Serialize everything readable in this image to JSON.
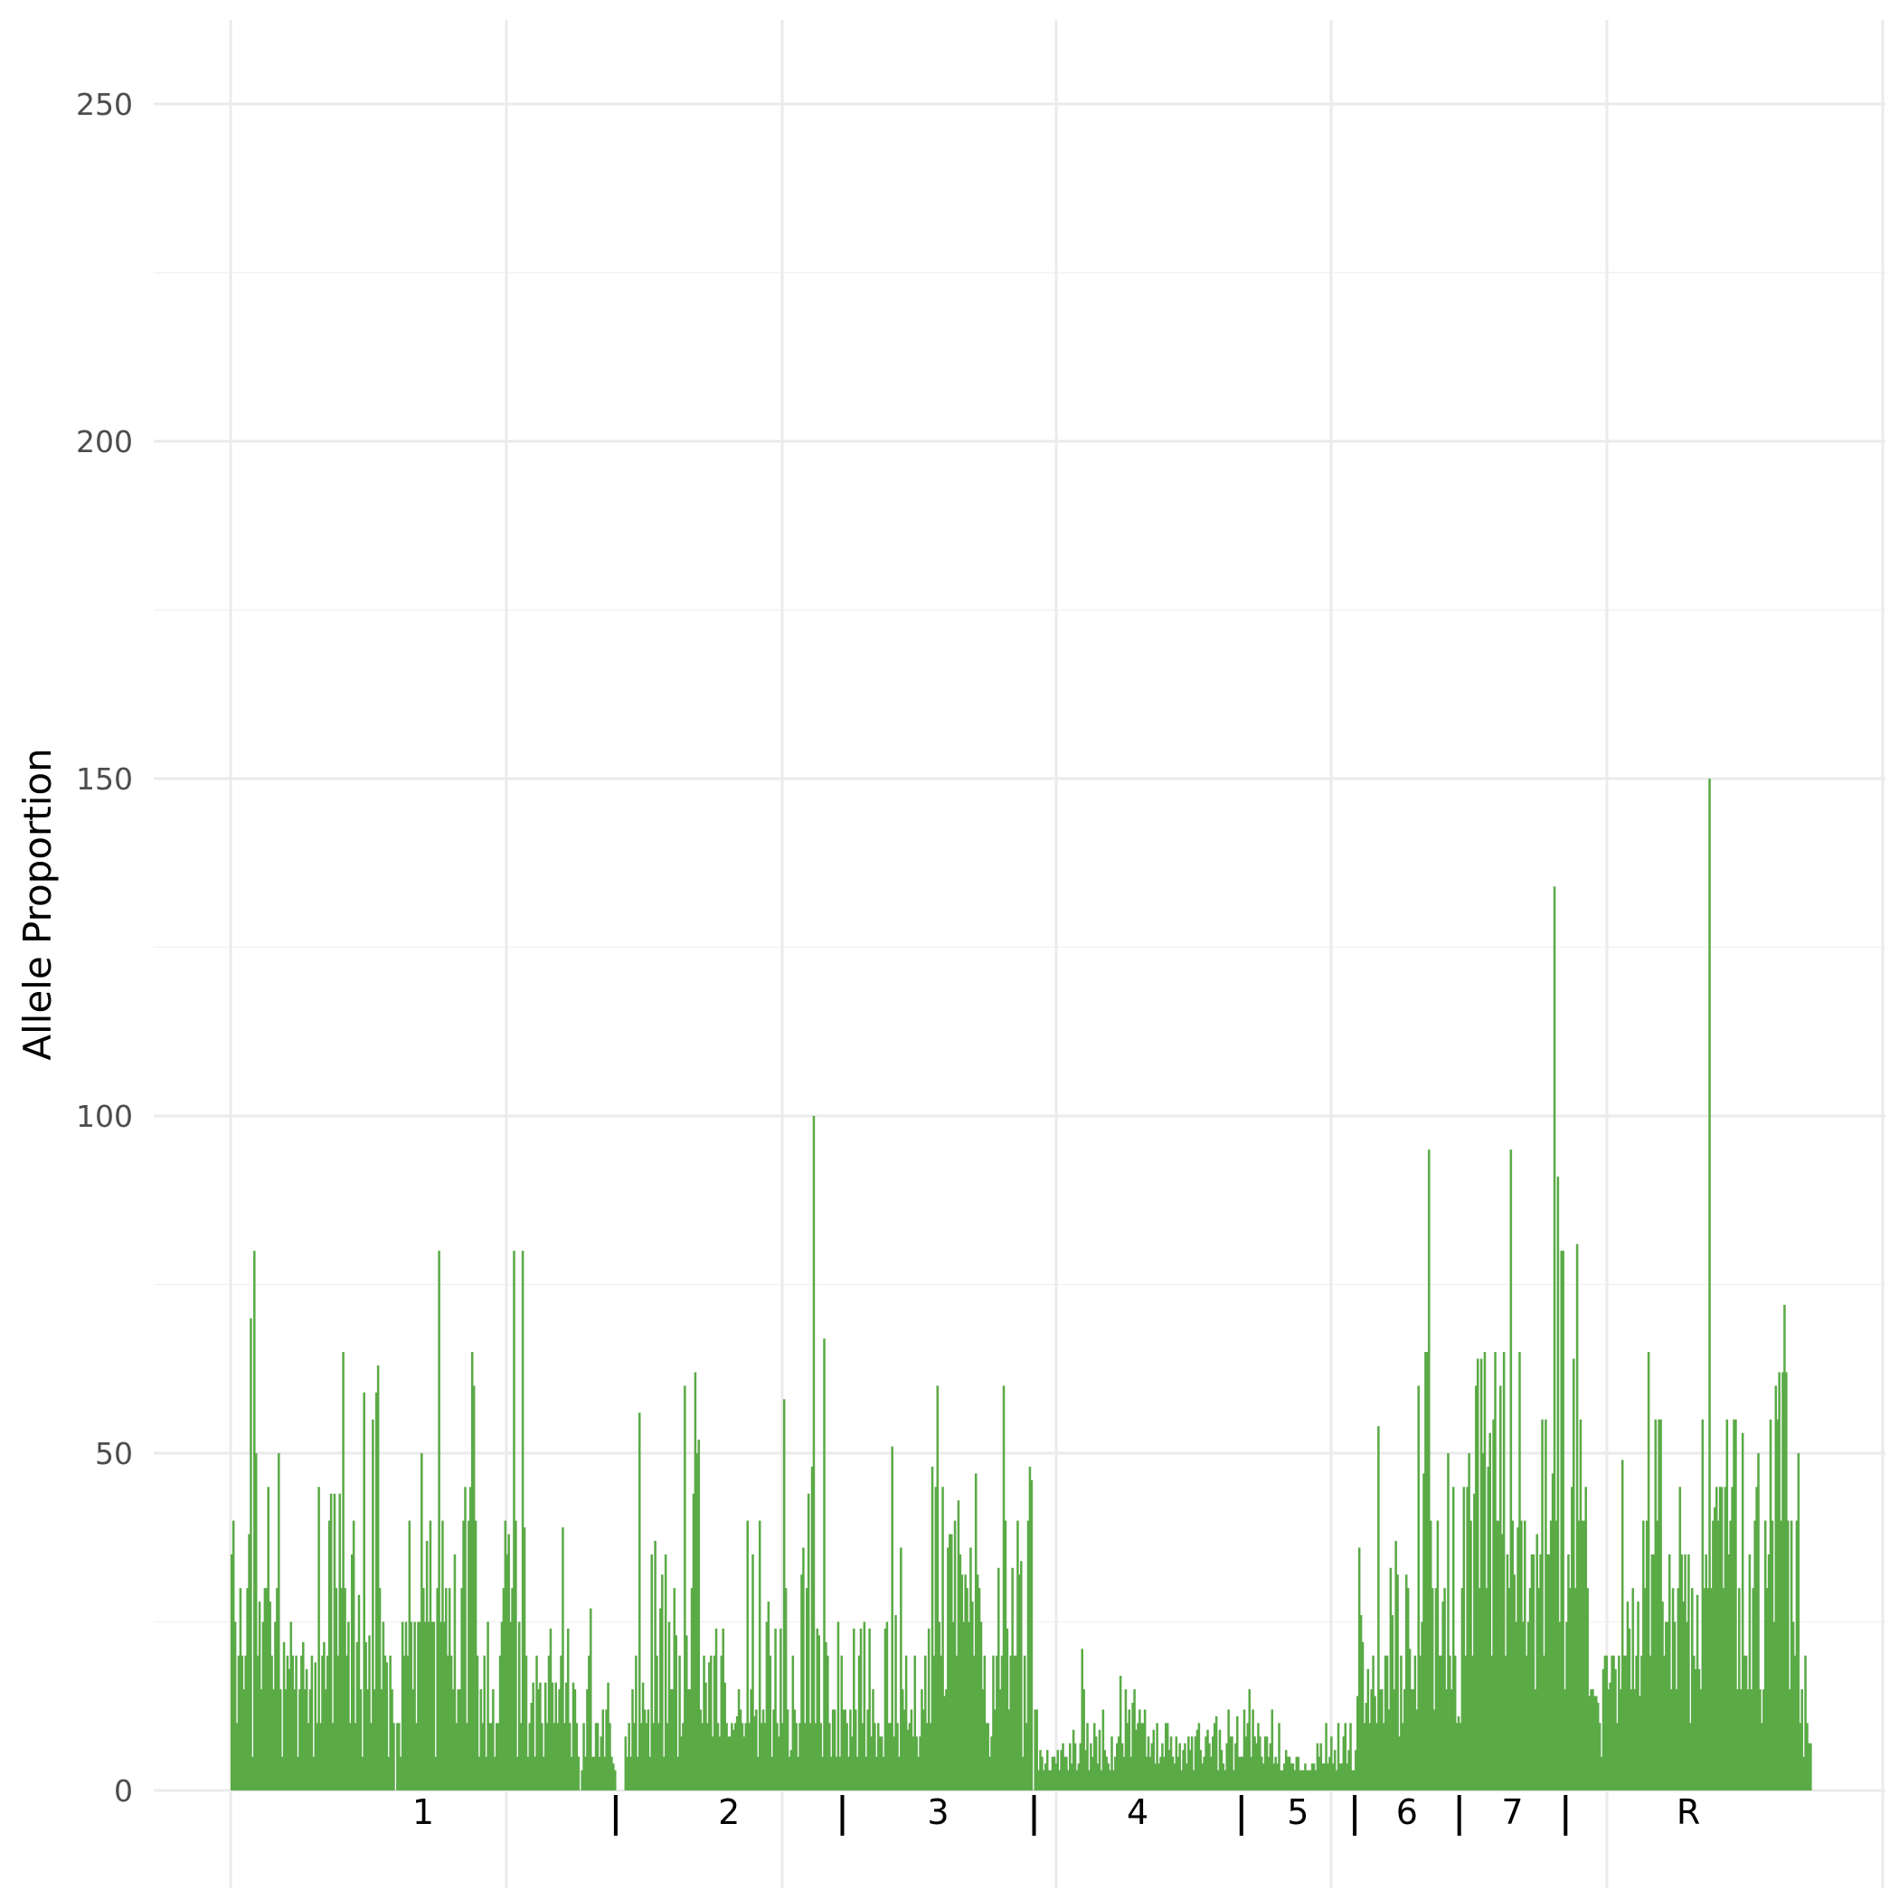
{
  "chart_data": {
    "type": "bar",
    "title": "",
    "xlabel": "",
    "ylabel": "Allele Proportion",
    "ylim": [
      0,
      260
    ],
    "yticks": [
      "0",
      "50",
      "100",
      "150",
      "200",
      "250"
    ],
    "bar_color": "#5aaa46",
    "grid": true,
    "legend": "none",
    "segments": [
      {
        "label": "1",
        "values": [
          35,
          40,
          25,
          10,
          20,
          30,
          20,
          15,
          20,
          30,
          38,
          70,
          5,
          80,
          50,
          20,
          28,
          15,
          25,
          30,
          30,
          45,
          28,
          20,
          15,
          25,
          30,
          50,
          15,
          5,
          22,
          15,
          20,
          18,
          25,
          20,
          15,
          20,
          5,
          15,
          20,
          22,
          15,
          18,
          10,
          15,
          20,
          5,
          19,
          10,
          45,
          10,
          20,
          22,
          15,
          20,
          40,
          44,
          10,
          44,
          30,
          20,
          44,
          30,
          65,
          30,
          20,
          25,
          10,
          35,
          40,
          10,
          22,
          29,
          15,
          5,
          59,
          22,
          15,
          23,
          10,
          55,
          15,
          59,
          63,
          30,
          15,
          25,
          20,
          19,
          5,
          20,
          15,
          10,
          0,
          10,
          10,
          5,
          25,
          20,
          25,
          20,
          40,
          25,
          15,
          25,
          10,
          25,
          25,
          50,
          30,
          25,
          37,
          25,
          40,
          25,
          25,
          5,
          30,
          80,
          25,
          40,
          25,
          30,
          20,
          30,
          20,
          15,
          35,
          10,
          15,
          15,
          30,
          40,
          45,
          10,
          40,
          45,
          65,
          60,
          40,
          20,
          5,
          15,
          10,
          20,
          5,
          25,
          10,
          10,
          15,
          5,
          10,
          10,
          20,
          25,
          30,
          40,
          35,
          38,
          25,
          30,
          80,
          40,
          5,
          25,
          10,
          80,
          39,
          20,
          5,
          10,
          13,
          16,
          5,
          20,
          15,
          16,
          10,
          5,
          16,
          10,
          20,
          24,
          16,
          10,
          16,
          10,
          15,
          20,
          39,
          10,
          16,
          24,
          10,
          5,
          16,
          15,
          10,
          5,
          0,
          3,
          10,
          5,
          15,
          20,
          27,
          5,
          5,
          10,
          10,
          5,
          8,
          12,
          5,
          12,
          16,
          10,
          5,
          4,
          3
        ]
      },
      {
        "label": "2",
        "values": [
          0,
          0,
          0,
          0,
          0,
          8,
          5,
          10,
          5,
          15,
          10,
          20,
          5,
          56,
          10,
          16,
          12,
          10,
          12,
          5,
          35,
          10,
          37,
          20,
          10,
          27,
          32,
          5,
          35,
          10,
          25,
          15,
          15,
          30,
          23,
          5,
          20,
          8,
          10,
          60,
          23,
          15,
          15,
          30,
          44,
          62,
          50,
          52,
          12,
          10,
          20,
          16,
          10,
          19,
          20,
          8,
          20,
          24,
          10,
          8,
          20,
          24,
          16,
          10,
          8,
          8,
          10,
          9,
          10,
          11,
          15,
          12,
          10,
          8,
          10,
          40,
          10,
          15,
          35,
          11,
          12,
          5,
          40,
          10,
          12,
          10,
          25,
          28,
          20,
          5,
          12,
          24,
          10,
          8,
          24,
          10,
          58,
          30,
          12,
          5,
          6,
          20,
          12,
          10,
          5,
          10,
          32,
          36,
          10,
          30,
          44,
          10,
          48,
          100,
          10,
          24,
          23,
          10,
          5,
          67,
          22,
          20,
          10,
          5,
          12,
          12,
          5,
          25,
          5,
          20
        ]
      },
      {
        "label": "3",
        "values": [
          12,
          12,
          10,
          5,
          12,
          8,
          24,
          12,
          5,
          20,
          24,
          10,
          25,
          5,
          12,
          24,
          8,
          15,
          10,
          5,
          10,
          8,
          8,
          5,
          24,
          25,
          10,
          10,
          51,
          8,
          26,
          10,
          5,
          36,
          15,
          12,
          20,
          9,
          10,
          12,
          8,
          20,
          8,
          5,
          8,
          15,
          12,
          20,
          10,
          24,
          10,
          48,
          20,
          45,
          60,
          25,
          20,
          45,
          14,
          15,
          36,
          38,
          38,
          25,
          40,
          20,
          43,
          35,
          32,
          25,
          32,
          30,
          25,
          36,
          28,
          20,
          47,
          32,
          30,
          25,
          15,
          20,
          10,
          10,
          5,
          8,
          20,
          12,
          20,
          33,
          15,
          20,
          60,
          40,
          24,
          12,
          20,
          33,
          20,
          20,
          40,
          32,
          34,
          5,
          20,
          10,
          40,
          48,
          46,
          0
        ]
      },
      {
        "label": "4",
        "values": [
          12,
          12,
          3,
          6,
          5,
          3,
          4,
          6,
          3,
          3,
          5,
          5,
          4,
          6,
          3,
          6,
          7,
          5,
          5,
          3,
          7,
          4,
          9,
          7,
          3,
          4,
          7,
          21,
          15,
          6,
          10,
          3,
          7,
          5,
          10,
          8,
          4,
          9,
          3,
          12,
          6,
          5,
          4,
          3,
          8,
          3,
          5,
          7,
          8,
          17,
          7,
          5,
          15,
          10,
          12,
          5,
          13,
          15,
          9,
          10,
          12,
          10,
          10,
          12,
          5,
          8,
          5,
          7,
          9,
          4,
          10,
          4,
          5,
          7,
          5,
          10,
          10,
          6,
          8,
          5,
          4,
          8,
          5,
          7,
          3,
          6,
          7,
          4,
          8,
          6,
          8,
          3,
          8,
          9,
          10,
          6,
          4,
          5,
          8,
          9,
          7,
          5,
          8,
          10,
          11,
          3,
          9,
          6,
          4,
          3,
          7,
          12,
          8,
          8,
          3,
          7,
          11,
          5,
          5
        ]
      },
      {
        "label": "5",
        "values": [
          5,
          12,
          8,
          10,
          15,
          5,
          12,
          8,
          7,
          10,
          8,
          5,
          4,
          8,
          8,
          5,
          7,
          12,
          4,
          5,
          4,
          10,
          3,
          3,
          4,
          6,
          5,
          5,
          4,
          4,
          3,
          5,
          5,
          3,
          3,
          3,
          4,
          3,
          3,
          3,
          4,
          4,
          3,
          7,
          5,
          7,
          4,
          4,
          10,
          4,
          5,
          8,
          4,
          6,
          3,
          10,
          4,
          4,
          8,
          10,
          4,
          6,
          10,
          3,
          3
        ]
      },
      {
        "label": "6",
        "values": [
          6,
          14,
          36,
          26,
          22,
          10,
          13,
          18,
          10,
          15,
          20,
          14,
          10,
          54,
          15,
          15,
          10,
          20,
          20,
          12,
          33,
          26,
          15,
          37,
          32,
          8,
          20,
          10,
          15,
          32,
          30,
          21,
          15,
          15,
          20,
          12,
          60,
          20,
          25,
          47,
          65,
          65,
          95,
          40,
          30,
          12,
          30,
          40,
          20,
          20,
          28,
          30,
          15,
          50,
          20,
          15,
          45,
          20,
          10,
          11
        ]
      },
      {
        "label": "7",
        "values": [
          10,
          30,
          45,
          20,
          45,
          50,
          40,
          20,
          44,
          60,
          64,
          30,
          64,
          50,
          65,
          30,
          48,
          53,
          20,
          55,
          65,
          40,
          40,
          60,
          38,
          65,
          20,
          35,
          30,
          95,
          40,
          32,
          25,
          39,
          65,
          40,
          25,
          40,
          20,
          25,
          30,
          35,
          35,
          15,
          38,
          30,
          35,
          55,
          20,
          55,
          35,
          35,
          40,
          47,
          134,
          40,
          91,
          25,
          80,
          80,
          15
        ]
      },
      {
        "label": "R",
        "values": [
          25,
          35,
          30,
          45,
          64,
          30,
          81,
          40,
          55,
          40,
          40,
          45,
          30,
          14,
          15,
          15,
          14,
          14,
          13,
          10,
          5,
          18,
          20,
          20,
          15,
          16,
          20,
          20,
          18,
          10,
          20,
          15,
          49,
          20,
          20,
          28,
          24,
          15,
          30,
          15,
          20,
          28,
          14,
          20,
          40,
          30,
          40,
          65,
          20,
          35,
          35,
          55,
          40,
          55,
          55,
          28,
          20,
          25,
          25,
          35,
          15,
          30,
          25,
          15,
          30,
          45,
          35,
          28,
          35,
          25,
          35,
          10,
          30,
          20,
          18,
          29,
          18,
          15,
          55,
          30,
          35,
          30,
          150,
          30,
          40,
          42,
          45,
          40,
          45,
          45,
          30,
          45,
          55,
          35,
          40,
          45,
          55,
          55,
          15,
          30,
          15,
          53,
          20,
          20,
          15,
          35,
          15,
          30,
          40,
          45,
          50,
          15,
          10,
          15,
          40,
          30,
          35,
          55,
          40,
          25,
          60,
          55,
          62,
          40,
          62,
          72,
          62,
          40,
          15,
          40,
          25,
          20,
          40,
          50,
          10,
          15,
          5,
          20,
          10,
          7,
          7
        ]
      }
    ]
  }
}
